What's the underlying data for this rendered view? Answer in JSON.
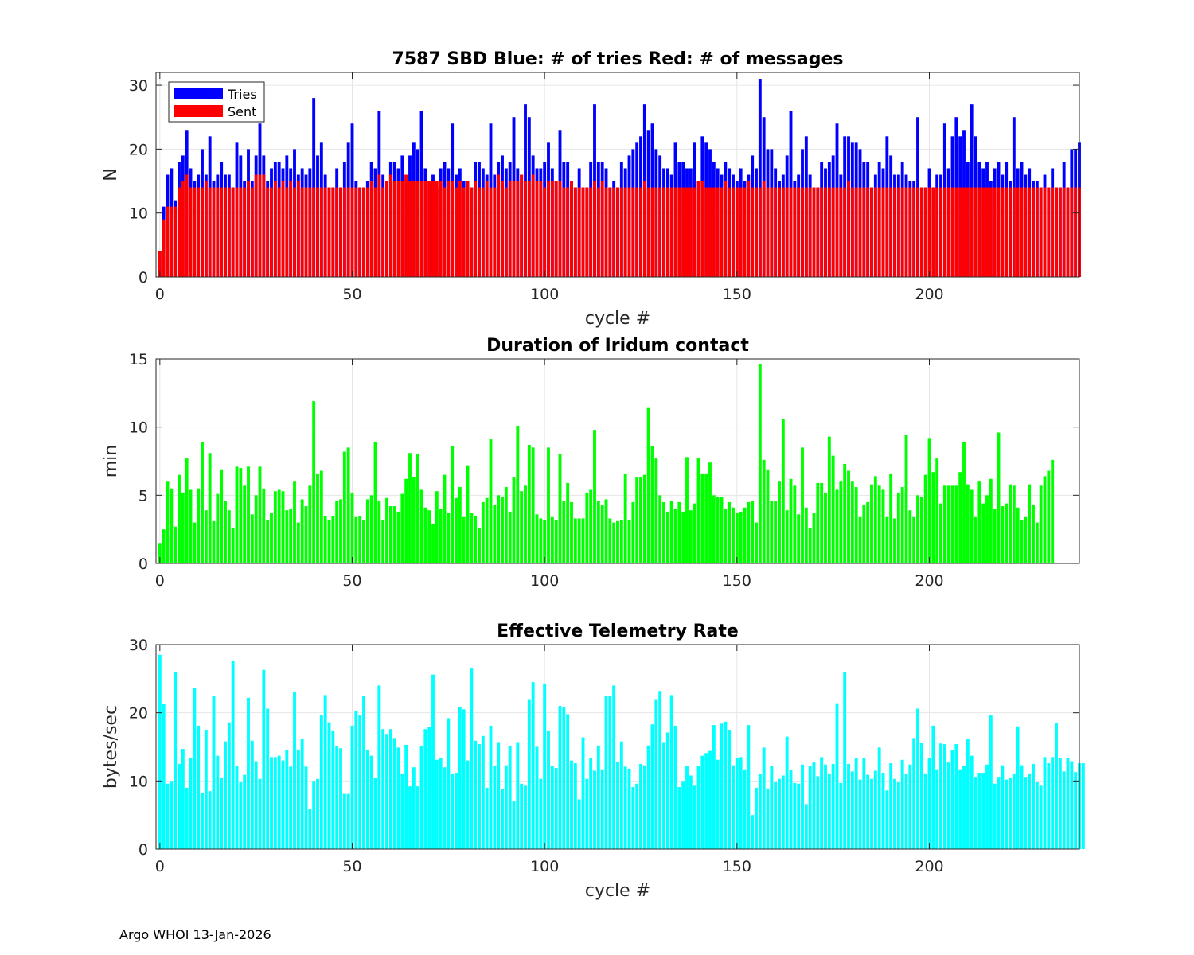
{
  "footer": "Argo WHOI 13-Jan-2026",
  "chart_data": [
    {
      "id": "sbd",
      "type": "bar",
      "title": "7587 SBD  Blue: # of tries   Red: # of messages",
      "xlabel": "cycle #",
      "ylabel": "N",
      "xlim": [
        -1,
        239
      ],
      "ylim": [
        0,
        32
      ],
      "xticks": [
        0,
        50,
        100,
        150,
        200
      ],
      "yticks": [
        0,
        10,
        20,
        30
      ],
      "grid": true,
      "legend": {
        "placement": "top-left",
        "entries": [
          {
            "label": "Tries",
            "color": "#0000ff"
          },
          {
            "label": "Sent",
            "color": "#ff0000"
          }
        ]
      },
      "x_start": 0,
      "series": [
        {
          "name": "Tries",
          "color": "#0000ff",
          "values": [
            4,
            11,
            16,
            17,
            12,
            18,
            19,
            23,
            17,
            15,
            16,
            20,
            16,
            22,
            15,
            16,
            18,
            16,
            16,
            14,
            21,
            19,
            15,
            20,
            15,
            19,
            24,
            19,
            15,
            17,
            18,
            18,
            17,
            19,
            17,
            20,
            16,
            17,
            16,
            17,
            28,
            19,
            21,
            16,
            14,
            14,
            17,
            14,
            18,
            21,
            24,
            15,
            14,
            14,
            15,
            18,
            17,
            26,
            16,
            15,
            18,
            18,
            17,
            19,
            16,
            19,
            21,
            20,
            26,
            17,
            15,
            16,
            14,
            17,
            18,
            17,
            24,
            16,
            17,
            15,
            15,
            14,
            18,
            18,
            17,
            16,
            24,
            16,
            18,
            19,
            17,
            18,
            25,
            17,
            16,
            27,
            25,
            19,
            17,
            17,
            18,
            21,
            17,
            15,
            23,
            18,
            18,
            15,
            14,
            17,
            14,
            14,
            18,
            27,
            18,
            18,
            17,
            14,
            15,
            14,
            18,
            17,
            19,
            20,
            21,
            22,
            27,
            23,
            24,
            20,
            19,
            17,
            17,
            16,
            21,
            18,
            18,
            17,
            17,
            21,
            15,
            22,
            21,
            20,
            18,
            17,
            16,
            18,
            17,
            16,
            15,
            17,
            15,
            16,
            19,
            17,
            31,
            25,
            20,
            20,
            17,
            15,
            16,
            19,
            26,
            15,
            16,
            20,
            22,
            16,
            14,
            14,
            18,
            17,
            18,
            19,
            24,
            16,
            22,
            22,
            21,
            21,
            20,
            18,
            18,
            14,
            16,
            18,
            17,
            22,
            19,
            16,
            16,
            18,
            16,
            15,
            15,
            25,
            14,
            14,
            17,
            14,
            16,
            16,
            24,
            17,
            22,
            25,
            22,
            23,
            18,
            27,
            22,
            18,
            17,
            18,
            15,
            17,
            18,
            16,
            18,
            15,
            25,
            17,
            18,
            16,
            17,
            15,
            15,
            14,
            16,
            14,
            17,
            14,
            14,
            18,
            14,
            20,
            20,
            21
          ]
        },
        {
          "name": "Sent",
          "color": "#ff0000",
          "values": [
            4,
            9,
            11,
            11,
            11,
            14,
            15,
            16,
            14,
            14,
            14,
            14,
            15,
            14,
            14,
            14,
            14,
            14,
            14,
            14,
            14,
            14,
            14,
            15,
            14,
            16,
            16,
            16,
            14,
            14,
            15,
            14,
            15,
            14,
            15,
            14,
            15,
            14,
            14,
            14,
            14,
            14,
            14,
            14,
            14,
            14,
            14,
            14,
            14,
            14,
            14,
            14,
            14,
            14,
            14,
            15,
            14,
            16,
            14,
            15,
            16,
            15,
            15,
            15,
            16,
            15,
            15,
            15,
            15,
            15,
            15,
            15,
            15,
            15,
            14,
            15,
            15,
            14,
            15,
            14,
            15,
            14,
            15,
            14,
            14,
            15,
            14,
            14,
            16,
            15,
            14,
            15,
            15,
            15,
            16,
            15,
            15,
            16,
            15,
            15,
            14,
            15,
            15,
            15,
            15,
            14,
            14,
            15,
            14,
            14,
            14,
            14,
            14,
            15,
            14,
            15,
            14,
            14,
            14,
            14,
            14,
            14,
            14,
            14,
            14,
            14,
            15,
            14,
            14,
            14,
            14,
            14,
            14,
            14,
            14,
            14,
            14,
            14,
            14,
            14,
            15,
            15,
            14,
            14,
            14,
            14,
            14,
            15,
            14,
            14,
            14,
            14,
            14,
            15,
            14,
            14,
            14,
            15,
            14,
            14,
            14,
            14,
            14,
            14,
            14,
            14,
            14,
            14,
            14,
            14,
            14,
            14,
            14,
            14,
            14,
            14,
            14,
            14,
            14,
            15,
            14,
            14,
            14,
            14,
            14,
            14,
            14,
            14,
            14,
            14,
            14,
            14,
            14,
            14,
            14,
            14,
            14,
            14,
            14,
            14,
            14,
            14,
            14,
            14,
            14,
            14,
            14,
            14,
            14,
            14,
            14,
            14,
            14,
            14,
            14,
            14,
            14,
            14,
            14,
            14,
            14,
            14,
            14,
            14,
            14,
            14,
            14,
            14,
            14,
            14,
            14,
            14,
            14,
            14,
            14,
            14,
            14,
            14,
            14,
            14
          ]
        }
      ]
    },
    {
      "id": "duration",
      "type": "bar",
      "title": "Duration of Iridum contact",
      "xlabel": "",
      "ylabel": "min",
      "xlim": [
        -1,
        239
      ],
      "ylim": [
        0,
        15
      ],
      "xticks": [
        0,
        50,
        100,
        150,
        200
      ],
      "yticks": [
        0,
        5,
        10,
        15
      ],
      "grid": true,
      "x_start": 0,
      "series": [
        {
          "name": "Duration",
          "color": "#00ff00",
          "values": [
            1.5,
            2.5,
            6.0,
            5.5,
            2.7,
            6.5,
            5.2,
            7.7,
            5.4,
            3.0,
            5.5,
            8.9,
            3.9,
            8.1,
            3.1,
            5.1,
            6.9,
            4.6,
            3.9,
            2.6,
            7.1,
            7.0,
            5.7,
            7.1,
            3.6,
            5.0,
            7.1,
            5.5,
            3.2,
            3.7,
            5.3,
            5.4,
            5.3,
            3.9,
            4.0,
            6.0,
            3.0,
            4.7,
            4.2,
            5.7,
            11.9,
            6.6,
            6.8,
            3.5,
            3.2,
            3.5,
            4.6,
            4.7,
            8.2,
            8.5,
            5.2,
            3.4,
            3.5,
            3.2,
            4.7,
            5.0,
            8.9,
            4.6,
            3.2,
            4.8,
            4.2,
            4.2,
            3.8,
            5.1,
            6.2,
            8.1,
            6.3,
            8.0,
            5.4,
            4.1,
            3.9,
            2.9,
            5.3,
            4.0,
            6.5,
            3.7,
            8.6,
            4.8,
            5.6,
            3.4,
            7.2,
            3.7,
            3.5,
            2.6,
            4.5,
            4.8,
            9.1,
            4.3,
            5.0,
            4.9,
            5.6,
            3.8,
            6.3,
            10.1,
            5.3,
            5.7,
            8.7,
            8.5,
            3.6,
            3.3,
            3.2,
            8.5,
            3.4,
            3.2,
            8.0,
            4.6,
            5.9,
            4.5,
            3.3,
            3.3,
            3.3,
            5.2,
            5.4,
            9.8,
            4.6,
            4.3,
            4.7,
            3.3,
            3.0,
            3.1,
            3.2,
            6.6,
            3.2,
            4.5,
            6.3,
            6.3,
            6.5,
            11.4,
            8.6,
            7.7,
            5.0,
            4.5,
            3.8,
            4.6,
            4.0,
            4.5,
            3.8,
            7.8,
            3.9,
            4.4,
            7.7,
            6.6,
            6.6,
            7.4,
            5.0,
            4.9,
            4.9,
            4.0,
            4.5,
            4.1,
            3.7,
            3.8,
            4.1,
            4.5,
            4.6,
            3.0,
            14.6,
            7.6,
            6.9,
            4.6,
            4.6,
            6.0,
            10.6,
            3.9,
            6.2,
            5.7,
            3.6,
            8.5,
            4.1,
            2.6,
            3.7,
            5.9,
            5.9,
            5.2,
            9.3,
            7.9,
            5.4,
            6.0,
            7.3,
            6.8,
            6.0,
            5.6,
            3.4,
            4.3,
            4.5,
            5.8,
            6.4,
            5.7,
            5.4,
            3.4,
            6.6,
            3.3,
            5.2,
            5.6,
            9.4,
            3.9,
            3.4,
            5.0,
            4.9,
            6.5,
            9.2,
            6.7,
            7.7,
            4.4,
            5.7,
            5.7,
            5.7,
            5.7,
            6.7,
            8.9,
            5.8,
            5.4,
            3.4,
            6.0,
            4.4,
            5.0,
            6.2,
            4.0,
            9.6,
            4.2,
            4.4,
            5.8,
            5.7,
            4.1,
            3.2,
            3.4,
            5.8,
            4.3,
            3.0,
            5.7,
            6.4,
            6.8,
            7.6
          ]
        }
      ]
    },
    {
      "id": "rate",
      "type": "bar",
      "title": "Effective Telemetry Rate",
      "xlabel": "cycle #",
      "ylabel": "bytes/sec",
      "xlim": [
        -1,
        239
      ],
      "ylim": [
        0,
        30
      ],
      "xticks": [
        0,
        50,
        100,
        150,
        200
      ],
      "yticks": [
        0,
        10,
        20,
        30
      ],
      "grid": true,
      "x_start": 0,
      "series": [
        {
          "name": "Rate",
          "color": "#00ffff",
          "values": [
            28.5,
            21.3,
            9.6,
            10.0,
            26.0,
            12.5,
            14.7,
            9.0,
            13.4,
            23.7,
            18.1,
            8.3,
            17.5,
            8.5,
            22.5,
            13.7,
            10.4,
            15.8,
            18.6,
            27.6,
            12.2,
            9.8,
            10.9,
            22.2,
            15.9,
            12.9,
            10.3,
            26.3,
            20.6,
            13.5,
            13.5,
            13.7,
            13.0,
            14.5,
            12.1,
            23.0,
            14.6,
            16.2,
            12.1,
            5.9,
            10.0,
            10.3,
            19.6,
            22.6,
            18.6,
            17.4,
            15.1,
            14.8,
            8.1,
            8.1,
            18.1,
            20.3,
            19.6,
            22.5,
            14.6,
            13.7,
            10.4,
            24.0,
            17.6,
            16.9,
            17.6,
            16.3,
            14.9,
            11.1,
            15.3,
            9.2,
            12.0,
            9.2,
            15.1,
            17.6,
            17.9,
            25.6,
            13.1,
            13.4,
            12.0,
            19.2,
            11.1,
            11.2,
            20.8,
            20.5,
            13.0,
            26.6,
            15.9,
            15.4,
            16.6,
            9.0,
            18.1,
            12.2,
            15.7,
            8.8,
            12.3,
            15.1,
            7.0,
            15.7,
            9.6,
            9.3,
            22.0,
            24.5,
            15.0,
            10.3,
            24.3,
            17.4,
            12.2,
            11.9,
            21.0,
            20.8,
            19.8,
            13.0,
            12.6,
            7.3,
            16.4,
            10.3,
            13.3,
            11.5,
            15.2,
            11.7,
            22.5,
            22.5,
            24.0,
            12.8,
            15.8,
            12.1,
            11.8,
            9.1,
            9.6,
            12.5,
            12.3,
            15.2,
            18.3,
            22.0,
            23.2,
            15.7,
            17.1,
            22.6,
            18.1,
            9.1,
            10.0,
            12.2,
            10.8,
            9.3,
            12.2,
            13.7,
            14.1,
            14.4,
            18.2,
            13.1,
            18.4,
            18.7,
            17.5,
            12.3,
            13.4,
            13.5,
            11.7,
            18.2,
            5.0,
            9.0,
            11.0,
            14.9,
            8.9,
            12.2,
            9.8,
            10.3,
            10.8,
            16.5,
            11.6,
            9.7,
            9.6,
            12.4,
            6.6,
            12.2,
            12.7,
            10.7,
            13.5,
            12.4,
            11.1,
            12.5,
            21.4,
            9.7,
            26.0,
            12.5,
            11.4,
            13.3,
            10.2,
            13.3,
            10.9,
            10.3,
            11.5,
            14.9,
            11.2,
            8.6,
            12.6,
            10.3,
            9.8,
            13.1,
            11.0,
            12.4,
            16.3,
            20.6,
            15.6,
            11.1,
            13.4,
            18.1,
            11.7,
            15.5,
            15.4,
            12.7,
            14.5,
            15.4,
            11.7,
            12.2,
            16.1,
            13.7,
            10.6,
            11.2,
            11.2,
            12.4,
            19.6,
            9.6,
            10.6,
            12.3,
            10.2,
            10.4,
            11.1,
            18.0,
            12.3,
            10.6,
            11.1,
            12.5,
            9.9,
            9.3,
            13.5,
            12.6,
            13.5,
            18.5,
            13.4,
            11.4,
            13.4,
            12.9,
            11.3,
            12.6,
            12.6
          ]
        }
      ]
    }
  ]
}
